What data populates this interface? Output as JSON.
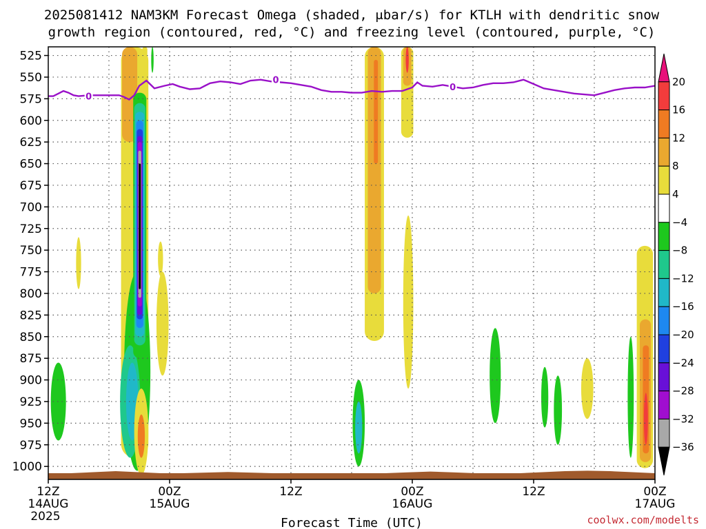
{
  "chart_data": {
    "type": "time-height contour",
    "title_line1": "2025081412 NAM3KM Forecast Omega (shaded, μbar/s) for KTLH with dendritic snow",
    "title_line2": "growth region (contoured, red, °C) and freezing level (contoured, purple, °C)",
    "xlabel": "Forecast Time (UTC)",
    "credit": "coolwx.com/modelts",
    "x_range_hours": [
      0,
      60
    ],
    "y_range_hpa": [
      515,
      1015
    ],
    "y_ticks": [
      525,
      550,
      575,
      600,
      625,
      650,
      675,
      700,
      725,
      750,
      775,
      800,
      825,
      850,
      875,
      900,
      925,
      950,
      975,
      1000
    ],
    "x_ticks": [
      {
        "h": 0,
        "l1": "12Z",
        "l2": "14AUG",
        "l3": "2025"
      },
      {
        "h": 12,
        "l1": "00Z",
        "l2": "15AUG",
        "l3": ""
      },
      {
        "h": 24,
        "l1": "12Z",
        "l2": "",
        "l3": ""
      },
      {
        "h": 36,
        "l1": "00Z",
        "l2": "16AUG",
        "l3": ""
      },
      {
        "h": 48,
        "l1": "12Z",
        "l2": "",
        "l3": ""
      },
      {
        "h": 60,
        "l1": "00Z",
        "l2": "17AUG",
        "l3": ""
      }
    ],
    "colorbar": {
      "labels": [
        "20",
        "16",
        "12",
        "8",
        "4",
        "−4",
        "−8",
        "−12",
        "−16",
        "−20",
        "−24",
        "−28",
        "−32",
        "−36"
      ],
      "colors": [
        "#e8117a",
        "#f23c3c",
        "#ef7b22",
        "#eaa82f",
        "#e8dc3b",
        "#ffffff",
        "#1ec81e",
        "#1fc88c",
        "#20b8c8",
        "#1e88f0",
        "#2040e0",
        "#6810d8",
        "#a00ed0",
        "#a8a8a8",
        "#000000"
      ]
    },
    "freezing_level": {
      "label": "0",
      "color": "#9910c8",
      "points": [
        [
          0,
          572
        ],
        [
          0.5,
          572
        ],
        [
          1,
          569
        ],
        [
          1.5,
          566
        ],
        [
          2,
          568
        ],
        [
          2.5,
          571
        ],
        [
          3,
          572
        ],
        [
          4,
          571
        ],
        [
          5,
          571
        ],
        [
          6,
          571
        ],
        [
          7,
          571
        ],
        [
          7.5,
          573
        ],
        [
          8,
          576
        ],
        [
          8.5,
          571
        ],
        [
          9,
          560
        ],
        [
          9.7,
          554
        ],
        [
          10.5,
          563
        ],
        [
          11.5,
          560
        ],
        [
          12.3,
          558
        ],
        [
          13,
          561
        ],
        [
          14,
          564
        ],
        [
          15,
          563
        ],
        [
          15.5,
          560
        ],
        [
          16,
          557
        ],
        [
          17,
          555
        ],
        [
          18,
          556
        ],
        [
          19,
          558
        ],
        [
          20,
          554
        ],
        [
          21,
          553
        ],
        [
          22,
          555
        ],
        [
          23,
          556
        ],
        [
          24,
          557
        ],
        [
          25,
          559
        ],
        [
          26,
          561
        ],
        [
          27,
          565
        ],
        [
          28,
          567
        ],
        [
          29,
          567
        ],
        [
          30,
          568
        ],
        [
          31,
          568
        ],
        [
          32,
          566
        ],
        [
          33,
          567
        ],
        [
          34,
          566
        ],
        [
          35,
          566
        ],
        [
          36,
          562
        ],
        [
          36.5,
          556
        ],
        [
          37,
          560
        ],
        [
          38,
          561
        ],
        [
          39,
          559
        ],
        [
          40,
          561
        ],
        [
          41,
          563
        ],
        [
          42,
          562
        ],
        [
          43,
          559
        ],
        [
          44,
          557
        ],
        [
          45,
          557
        ],
        [
          46,
          556
        ],
        [
          47,
          553
        ],
        [
          48,
          558
        ],
        [
          49,
          563
        ],
        [
          50,
          565
        ],
        [
          51,
          567
        ],
        [
          52,
          569
        ],
        [
          53,
          570
        ],
        [
          54,
          571
        ],
        [
          55,
          568
        ],
        [
          56,
          565
        ],
        [
          57,
          563
        ],
        [
          58,
          562
        ],
        [
          59,
          562
        ],
        [
          60,
          560
        ]
      ],
      "label_positions": [
        [
          4.0,
          572
        ],
        [
          22.5,
          553
        ],
        [
          40.0,
          561
        ]
      ]
    },
    "omega_features": [
      {
        "kind": "plume",
        "x0": 7.2,
        "x1": 9.9,
        "top": 515,
        "bottom": 990,
        "fill": "#e8dc3b"
      },
      {
        "kind": "plume",
        "x0": 7.3,
        "x1": 8.8,
        "top": 515,
        "bottom": 625,
        "fill": "#eaa82f"
      },
      {
        "kind": "plume",
        "x0": 9.3,
        "x1": 9.8,
        "top": 515,
        "bottom": 575,
        "fill": "#e8dc3b"
      },
      {
        "kind": "blob",
        "cx": 8.8,
        "cy": 890,
        "rx": 1.3,
        "ry": 115,
        "fill": "#1ec81e"
      },
      {
        "kind": "blob",
        "cx": 8.1,
        "cy": 925,
        "rx": 1.0,
        "ry": 65,
        "fill": "#1fc88c"
      },
      {
        "kind": "blob",
        "cx": 8.3,
        "cy": 925,
        "rx": 0.6,
        "ry": 45,
        "fill": "#20b8c8"
      },
      {
        "kind": "plume",
        "x0": 8.4,
        "x1": 9.7,
        "top": 568,
        "bottom": 875,
        "fill": "#1ec81e"
      },
      {
        "kind": "plume",
        "x0": 8.5,
        "x1": 9.6,
        "top": 580,
        "bottom": 860,
        "fill": "#1fc88c"
      },
      {
        "kind": "plume",
        "x0": 8.6,
        "x1": 9.5,
        "top": 590,
        "bottom": 850,
        "fill": "#20b8c8"
      },
      {
        "kind": "plume",
        "x0": 8.7,
        "x1": 9.4,
        "top": 600,
        "bottom": 840,
        "fill": "#1e88f0"
      },
      {
        "kind": "plume",
        "x0": 8.75,
        "x1": 9.35,
        "top": 610,
        "bottom": 830,
        "fill": "#2040e0"
      },
      {
        "kind": "plume",
        "x0": 8.8,
        "x1": 9.3,
        "top": 618,
        "bottom": 825,
        "fill": "#6810d8"
      },
      {
        "kind": "plume",
        "x0": 8.85,
        "x1": 9.25,
        "top": 625,
        "bottom": 815,
        "fill": "#a00ed0"
      },
      {
        "kind": "plume",
        "x0": 8.9,
        "x1": 9.2,
        "top": 635,
        "bottom": 805,
        "fill": "#a8a8a8"
      },
      {
        "kind": "plume",
        "x0": 8.95,
        "x1": 9.15,
        "top": 650,
        "bottom": 795,
        "fill": "#000000"
      },
      {
        "kind": "blob",
        "cx": 9.2,
        "cy": 960,
        "rx": 0.7,
        "ry": 50,
        "fill": "#e8dc3b"
      },
      {
        "kind": "blob",
        "cx": 9.2,
        "cy": 965,
        "rx": 0.35,
        "ry": 25,
        "fill": "#ef7b22"
      },
      {
        "kind": "blob",
        "cx": 11.3,
        "cy": 835,
        "rx": 0.6,
        "ry": 60,
        "fill": "#e8dc3b"
      },
      {
        "kind": "blob",
        "cx": 11.1,
        "cy": 760,
        "rx": 0.25,
        "ry": 20,
        "fill": "#e8dc3b"
      },
      {
        "kind": "blob",
        "cx": 3.0,
        "cy": 765,
        "rx": 0.25,
        "ry": 30,
        "fill": "#e8dc3b"
      },
      {
        "kind": "blob",
        "cx": 1.0,
        "cy": 925,
        "rx": 0.75,
        "ry": 45,
        "fill": "#1ec81e"
      },
      {
        "kind": "blob",
        "cx": 10.3,
        "cy": 530,
        "rx": 0.12,
        "ry": 15,
        "fill": "#1ec81e"
      },
      {
        "kind": "plume",
        "x0": 31.3,
        "x1": 33.2,
        "top": 515,
        "bottom": 855,
        "fill": "#e8dc3b"
      },
      {
        "kind": "plume",
        "x0": 31.6,
        "x1": 32.9,
        "top": 515,
        "bottom": 800,
        "fill": "#eaa82f"
      },
      {
        "kind": "plume",
        "x0": 32.2,
        "x1": 32.6,
        "top": 530,
        "bottom": 650,
        "fill": "#ef7b22"
      },
      {
        "kind": "plume",
        "x0": 34.9,
        "x1": 36.1,
        "top": 515,
        "bottom": 620,
        "fill": "#e8dc3b"
      },
      {
        "kind": "plume",
        "x0": 35.1,
        "x1": 35.9,
        "top": 515,
        "bottom": 560,
        "fill": "#eaa82f"
      },
      {
        "kind": "blob",
        "cx": 35.5,
        "cy": 530,
        "rx": 0.15,
        "ry": 15,
        "fill": "#f23c3c"
      },
      {
        "kind": "blob",
        "cx": 35.6,
        "cy": 810,
        "rx": 0.5,
        "ry": 100,
        "fill": "#e8dc3b"
      },
      {
        "kind": "blob",
        "cx": 30.7,
        "cy": 950,
        "rx": 0.6,
        "ry": 50,
        "fill": "#1ec81e"
      },
      {
        "kind": "blob",
        "cx": 30.7,
        "cy": 955,
        "rx": 0.35,
        "ry": 30,
        "fill": "#20b8c8"
      },
      {
        "kind": "blob",
        "cx": 44.2,
        "cy": 895,
        "rx": 0.55,
        "ry": 55,
        "fill": "#1ec81e"
      },
      {
        "kind": "blob",
        "cx": 49.1,
        "cy": 920,
        "rx": 0.35,
        "ry": 35,
        "fill": "#1ec81e"
      },
      {
        "kind": "blob",
        "cx": 50.4,
        "cy": 935,
        "rx": 0.4,
        "ry": 40,
        "fill": "#1ec81e"
      },
      {
        "kind": "blob",
        "cx": 53.3,
        "cy": 910,
        "rx": 0.6,
        "ry": 35,
        "fill": "#e8dc3b"
      },
      {
        "kind": "blob",
        "cx": 57.6,
        "cy": 920,
        "rx": 0.3,
        "ry": 70,
        "fill": "#1ec81e"
      },
      {
        "kind": "plume",
        "x0": 58.2,
        "x1": 59.8,
        "top": 745,
        "bottom": 1002,
        "fill": "#e8dc3b"
      },
      {
        "kind": "plume",
        "x0": 58.5,
        "x1": 59.6,
        "top": 830,
        "bottom": 995,
        "fill": "#eaa82f"
      },
      {
        "kind": "plume",
        "x0": 58.8,
        "x1": 59.4,
        "top": 860,
        "bottom": 985,
        "fill": "#ef7b22"
      },
      {
        "kind": "blob",
        "cx": 59.1,
        "cy": 945,
        "rx": 0.2,
        "ry": 30,
        "fill": "#f23c3c"
      }
    ],
    "ground_color": "#a05a2c"
  }
}
